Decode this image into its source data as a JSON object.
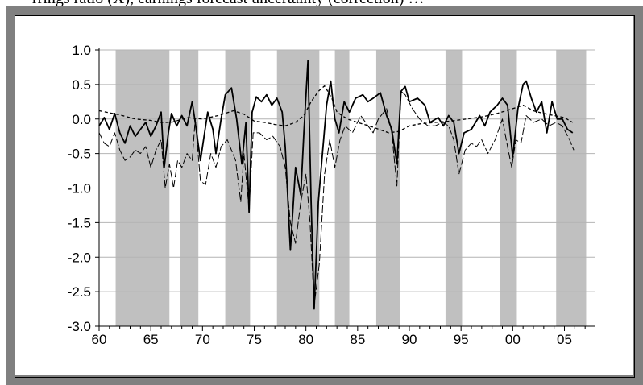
{
  "caption": "rrings ratio (X), earnings forecast uncertainty (correction) …",
  "chart_data": {
    "type": "line",
    "title": "",
    "xlabel": "",
    "ylabel": "",
    "xlim": [
      1960,
      2008
    ],
    "ylim": [
      -3.0,
      1.0
    ],
    "grid": "horizontal",
    "legend": "none",
    "y_ticks": [
      {
        "value": 1.0,
        "label": "1.0"
      },
      {
        "value": 0.5,
        "label": "0.5"
      },
      {
        "value": 0.0,
        "label": "0.0"
      },
      {
        "value": -0.5,
        "label": "-0.5"
      },
      {
        "value": -1.0,
        "label": "-1.0"
      },
      {
        "value": -1.5,
        "label": "-1.5"
      },
      {
        "value": -2.0,
        "label": "-2.0"
      },
      {
        "value": -2.5,
        "label": "-2.5"
      },
      {
        "value": -3.0,
        "label": "-3.0"
      }
    ],
    "x_ticks": [
      {
        "value": 1960,
        "label": "60"
      },
      {
        "value": 1965,
        "label": "65"
      },
      {
        "value": 1970,
        "label": "70"
      },
      {
        "value": 1975,
        "label": "75"
      },
      {
        "value": 1980,
        "label": "80"
      },
      {
        "value": 1985,
        "label": "85"
      },
      {
        "value": 1990,
        "label": "90"
      },
      {
        "value": 1995,
        "label": "95"
      },
      {
        "value": 2000,
        "label": "00"
      },
      {
        "value": 2005,
        "label": "05"
      }
    ],
    "shaded_periods": [
      [
        1961.6,
        1966.8
      ],
      [
        1967.8,
        1969.6
      ],
      [
        1972.2,
        1974.6
      ],
      [
        1977.2,
        1981.3
      ],
      [
        1982.8,
        1984.2
      ],
      [
        1986.8,
        1989.1
      ],
      [
        1993.5,
        1995.1
      ],
      [
        1998.8,
        2000.4
      ],
      [
        2004.2,
        2007.1
      ]
    ],
    "colors": {
      "series": "#000000",
      "shading": "#c0c0c0",
      "grid": "#b4b4b4",
      "frame": "#808080"
    },
    "series": [
      {
        "style": "solid-thick",
        "points": [
          [
            1960.0,
            -0.1
          ],
          [
            1960.5,
            0.02
          ],
          [
            1961.0,
            -0.15
          ],
          [
            1961.5,
            0.08
          ],
          [
            1962.0,
            -0.2
          ],
          [
            1962.5,
            -0.35
          ],
          [
            1963.0,
            -0.1
          ],
          [
            1963.5,
            -0.25
          ],
          [
            1964.0,
            -0.15
          ],
          [
            1964.5,
            -0.05
          ],
          [
            1965.0,
            -0.25
          ],
          [
            1965.5,
            -0.1
          ],
          [
            1966.0,
            0.1
          ],
          [
            1966.3,
            -0.7
          ],
          [
            1966.7,
            -0.2
          ],
          [
            1967.0,
            0.08
          ],
          [
            1967.5,
            -0.1
          ],
          [
            1968.0,
            0.05
          ],
          [
            1968.5,
            -0.1
          ],
          [
            1969.0,
            0.25
          ],
          [
            1969.3,
            -0.05
          ],
          [
            1969.8,
            -0.6
          ],
          [
            1970.2,
            -0.2
          ],
          [
            1970.5,
            0.1
          ],
          [
            1971.0,
            -0.15
          ],
          [
            1971.3,
            -0.5
          ],
          [
            1971.8,
            0.0
          ],
          [
            1972.2,
            0.35
          ],
          [
            1972.8,
            0.45
          ],
          [
            1973.3,
            0.0
          ],
          [
            1973.8,
            -0.65
          ],
          [
            1974.2,
            -0.05
          ],
          [
            1974.5,
            -1.35
          ],
          [
            1974.8,
            0.1
          ],
          [
            1975.2,
            0.32
          ],
          [
            1975.7,
            0.25
          ],
          [
            1976.2,
            0.35
          ],
          [
            1976.7,
            0.2
          ],
          [
            1977.2,
            0.3
          ],
          [
            1977.7,
            0.1
          ],
          [
            1978.0,
            -0.4
          ],
          [
            1978.5,
            -1.9
          ],
          [
            1979.0,
            -0.7
          ],
          [
            1979.5,
            -1.1
          ],
          [
            1979.8,
            -0.2
          ],
          [
            1980.2,
            0.85
          ],
          [
            1980.5,
            -1.2
          ],
          [
            1980.8,
            -2.75
          ],
          [
            1981.2,
            -1.2
          ],
          [
            1981.6,
            -0.5
          ],
          [
            1982.0,
            0.2
          ],
          [
            1982.4,
            0.55
          ],
          [
            1982.8,
            0.0
          ],
          [
            1983.2,
            -0.2
          ],
          [
            1983.7,
            0.25
          ],
          [
            1984.2,
            0.1
          ],
          [
            1984.8,
            0.3
          ],
          [
            1985.5,
            0.35
          ],
          [
            1986.0,
            0.25
          ],
          [
            1986.5,
            0.3
          ],
          [
            1987.2,
            0.38
          ],
          [
            1987.8,
            0.05
          ],
          [
            1988.3,
            -0.15
          ],
          [
            1988.8,
            -0.65
          ],
          [
            1989.2,
            0.4
          ],
          [
            1989.6,
            0.47
          ],
          [
            1990.0,
            0.25
          ],
          [
            1990.8,
            0.3
          ],
          [
            1991.5,
            0.2
          ],
          [
            1992.0,
            -0.05
          ],
          [
            1992.8,
            0.02
          ],
          [
            1993.3,
            -0.1
          ],
          [
            1993.8,
            0.05
          ],
          [
            1994.3,
            -0.05
          ],
          [
            1994.8,
            -0.5
          ],
          [
            1995.3,
            -0.2
          ],
          [
            1996.0,
            -0.15
          ],
          [
            1996.8,
            0.05
          ],
          [
            1997.3,
            -0.1
          ],
          [
            1997.8,
            0.1
          ],
          [
            1998.5,
            0.2
          ],
          [
            1999.0,
            0.3
          ],
          [
            1999.5,
            0.2
          ],
          [
            2000.0,
            -0.55
          ],
          [
            2000.5,
            0.15
          ],
          [
            2001.0,
            0.5
          ],
          [
            2001.3,
            0.55
          ],
          [
            2001.8,
            0.3
          ],
          [
            2002.3,
            0.1
          ],
          [
            2002.8,
            0.25
          ],
          [
            2003.3,
            -0.2
          ],
          [
            2003.8,
            0.25
          ],
          [
            2004.3,
            0.0
          ],
          [
            2004.8,
            0.0
          ],
          [
            2005.3,
            -0.15
          ],
          [
            2005.8,
            -0.2
          ]
        ]
      },
      {
        "style": "thin-dashed",
        "points": [
          [
            1960.0,
            -0.2
          ],
          [
            1960.5,
            -0.35
          ],
          [
            1961.0,
            -0.4
          ],
          [
            1961.5,
            -0.2
          ],
          [
            1962.0,
            -0.45
          ],
          [
            1962.5,
            -0.6
          ],
          [
            1963.0,
            -0.55
          ],
          [
            1963.5,
            -0.45
          ],
          [
            1964.0,
            -0.5
          ],
          [
            1964.5,
            -0.4
          ],
          [
            1965.0,
            -0.7
          ],
          [
            1965.5,
            -0.45
          ],
          [
            1966.0,
            -0.3
          ],
          [
            1966.4,
            -1.0
          ],
          [
            1966.8,
            -0.65
          ],
          [
            1967.2,
            -1.0
          ],
          [
            1967.6,
            -0.6
          ],
          [
            1968.0,
            -0.7
          ],
          [
            1968.5,
            -0.5
          ],
          [
            1969.0,
            -0.6
          ],
          [
            1969.3,
            0.0
          ],
          [
            1969.8,
            -0.9
          ],
          [
            1970.3,
            -0.95
          ],
          [
            1970.8,
            -0.5
          ],
          [
            1971.3,
            -0.7
          ],
          [
            1971.8,
            -0.4
          ],
          [
            1972.4,
            -0.3
          ],
          [
            1973.2,
            -0.6
          ],
          [
            1973.7,
            -1.2
          ],
          [
            1974.0,
            -0.5
          ],
          [
            1974.5,
            -1.3
          ],
          [
            1974.9,
            -0.2
          ],
          [
            1975.5,
            -0.2
          ],
          [
            1976.2,
            -0.3
          ],
          [
            1976.8,
            -0.25
          ],
          [
            1977.5,
            -0.4
          ],
          [
            1978.0,
            -0.7
          ],
          [
            1978.5,
            -1.5
          ],
          [
            1979.0,
            -1.8
          ],
          [
            1979.5,
            -1.2
          ],
          [
            1980.0,
            -0.8
          ],
          [
            1980.4,
            -1.5
          ],
          [
            1980.8,
            -2.7
          ],
          [
            1981.3,
            -2.1
          ],
          [
            1981.8,
            -0.8
          ],
          [
            1982.3,
            -0.3
          ],
          [
            1982.8,
            -0.7
          ],
          [
            1983.3,
            -0.3
          ],
          [
            1983.8,
            -0.1
          ],
          [
            1984.5,
            -0.2
          ],
          [
            1985.3,
            0.05
          ],
          [
            1986.0,
            -0.1
          ],
          [
            1986.5,
            -0.2
          ],
          [
            1987.0,
            0.0
          ],
          [
            1987.8,
            0.15
          ],
          [
            1988.3,
            -0.2
          ],
          [
            1988.8,
            -0.97
          ],
          [
            1989.2,
            0.4
          ],
          [
            1989.6,
            0.35
          ],
          [
            1990.3,
            0.15
          ],
          [
            1991.0,
            0.0
          ],
          [
            1991.8,
            -0.1
          ],
          [
            1992.5,
            -0.1
          ],
          [
            1993.2,
            -0.05
          ],
          [
            1993.8,
            -0.1
          ],
          [
            1994.3,
            -0.3
          ],
          [
            1994.8,
            -0.8
          ],
          [
            1995.4,
            -0.45
          ],
          [
            1996.0,
            -0.35
          ],
          [
            1996.5,
            -0.4
          ],
          [
            1997.0,
            -0.3
          ],
          [
            1997.6,
            -0.5
          ],
          [
            1998.3,
            -0.3
          ],
          [
            1999.0,
            0.0
          ],
          [
            1999.5,
            -0.4
          ],
          [
            1999.9,
            -0.7
          ],
          [
            2000.3,
            -0.3
          ],
          [
            2000.8,
            -0.35
          ],
          [
            2001.3,
            0.05
          ],
          [
            2002.0,
            -0.05
          ],
          [
            2002.8,
            0.0
          ],
          [
            2003.5,
            -0.1
          ],
          [
            2004.2,
            -0.05
          ],
          [
            2004.8,
            -0.1
          ],
          [
            2005.5,
            -0.3
          ],
          [
            2005.9,
            -0.45
          ]
        ]
      },
      {
        "style": "dashed",
        "points": [
          [
            1960.0,
            0.12
          ],
          [
            1962.0,
            0.06
          ],
          [
            1963.5,
            0.0
          ],
          [
            1965.0,
            -0.02
          ],
          [
            1966.0,
            -0.05
          ],
          [
            1967.0,
            -0.05
          ],
          [
            1968.5,
            0.02
          ],
          [
            1970.0,
            0.0
          ],
          [
            1971.5,
            0.05
          ],
          [
            1973.0,
            0.12
          ],
          [
            1974.0,
            0.07
          ],
          [
            1975.0,
            -0.03
          ],
          [
            1976.0,
            -0.05
          ],
          [
            1977.0,
            -0.08
          ],
          [
            1978.0,
            -0.1
          ],
          [
            1979.0,
            -0.05
          ],
          [
            1979.8,
            0.05
          ],
          [
            1980.5,
            0.25
          ],
          [
            1981.2,
            0.4
          ],
          [
            1981.8,
            0.48
          ],
          [
            1982.5,
            0.3
          ],
          [
            1983.0,
            0.1
          ],
          [
            1984.0,
            0.0
          ],
          [
            1985.0,
            -0.05
          ],
          [
            1986.5,
            -0.12
          ],
          [
            1988.0,
            -0.2
          ],
          [
            1989.0,
            -0.18
          ],
          [
            1990.0,
            -0.1
          ],
          [
            1991.0,
            -0.07
          ],
          [
            1992.5,
            -0.05
          ],
          [
            1994.0,
            -0.03
          ],
          [
            1995.5,
            0.0
          ],
          [
            1997.0,
            0.03
          ],
          [
            1998.5,
            0.08
          ],
          [
            2000.0,
            0.15
          ],
          [
            2001.0,
            0.2
          ],
          [
            2002.0,
            0.12
          ],
          [
            2003.0,
            0.08
          ],
          [
            2004.0,
            0.05
          ],
          [
            2005.0,
            0.02
          ],
          [
            2005.8,
            -0.05
          ]
        ]
      }
    ]
  }
}
